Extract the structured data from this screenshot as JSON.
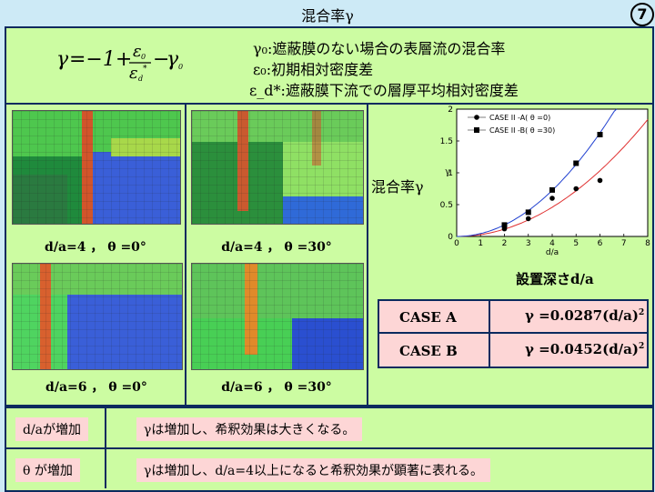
{
  "header": {
    "title": "混合率γ",
    "slide_number": "7"
  },
  "formula": {
    "expression": "γ=−1+ε₀/ε_d*−γ₀",
    "definitions": [
      {
        "symbol": "γ₀",
        "text": "遮蔽膜のない場合の表層流の混合率"
      },
      {
        "symbol": "ε₀",
        "text": "初期相対密度差"
      },
      {
        "symbol": "ε_d*",
        "text": "遮蔽膜下流での層厚平均相対密度差"
      }
    ]
  },
  "photos": [
    {
      "caption": "d/a=4 ， θ =0°"
    },
    {
      "caption": "d/a=4 ， θ =30°"
    },
    {
      "caption": "d/a=6 ， θ =0°"
    },
    {
      "caption": "d/a=6 ， θ =30°"
    }
  ],
  "chart_labels": {
    "ylabel": "混合率γ",
    "xlabel": "設置深さd/a"
  },
  "chart_data": {
    "type": "scatter",
    "xlabel": "d/a",
    "ylabel": "γ",
    "xlim": [
      0,
      8
    ],
    "ylim": [
      0,
      2
    ],
    "xticks": [
      "0",
      "1",
      "2",
      "3",
      "4",
      "5",
      "6",
      "7",
      "8"
    ],
    "yticks": [
      "0",
      "0.5",
      "1",
      "1.5",
      "2"
    ],
    "legend_position": "top-left",
    "series": [
      {
        "name": "CASE II -A( θ =0)",
        "marker": "circle",
        "color": "#000000",
        "x": [
          2,
          3,
          4,
          5,
          6
        ],
        "y": [
          0.12,
          0.28,
          0.6,
          0.75,
          0.88
        ]
      },
      {
        "name": "CASE II -B( θ =30)",
        "marker": "square",
        "color": "#000000",
        "x": [
          2,
          3,
          4,
          5,
          6
        ],
        "y": [
          0.18,
          0.38,
          0.73,
          1.15,
          1.6
        ]
      }
    ],
    "fits": [
      {
        "coef": 0.0287,
        "color": "#e03030"
      },
      {
        "coef": 0.0452,
        "color": "#2040d0"
      }
    ]
  },
  "cases": [
    {
      "label": "CASE A",
      "formula": "γ =0.0287(d/a)",
      "power": "2"
    },
    {
      "label": "CASE B",
      "formula": "γ =0.0452(d/a)",
      "power": "2"
    }
  ],
  "conclusions": [
    {
      "condition": "d/aが増加",
      "result": "γは増加し、希釈効果は大きくなる。"
    },
    {
      "condition": "θ が増加",
      "result": "γは増加し、d/a=4以上になると希釈効果が顕著に表れる。"
    }
  ]
}
